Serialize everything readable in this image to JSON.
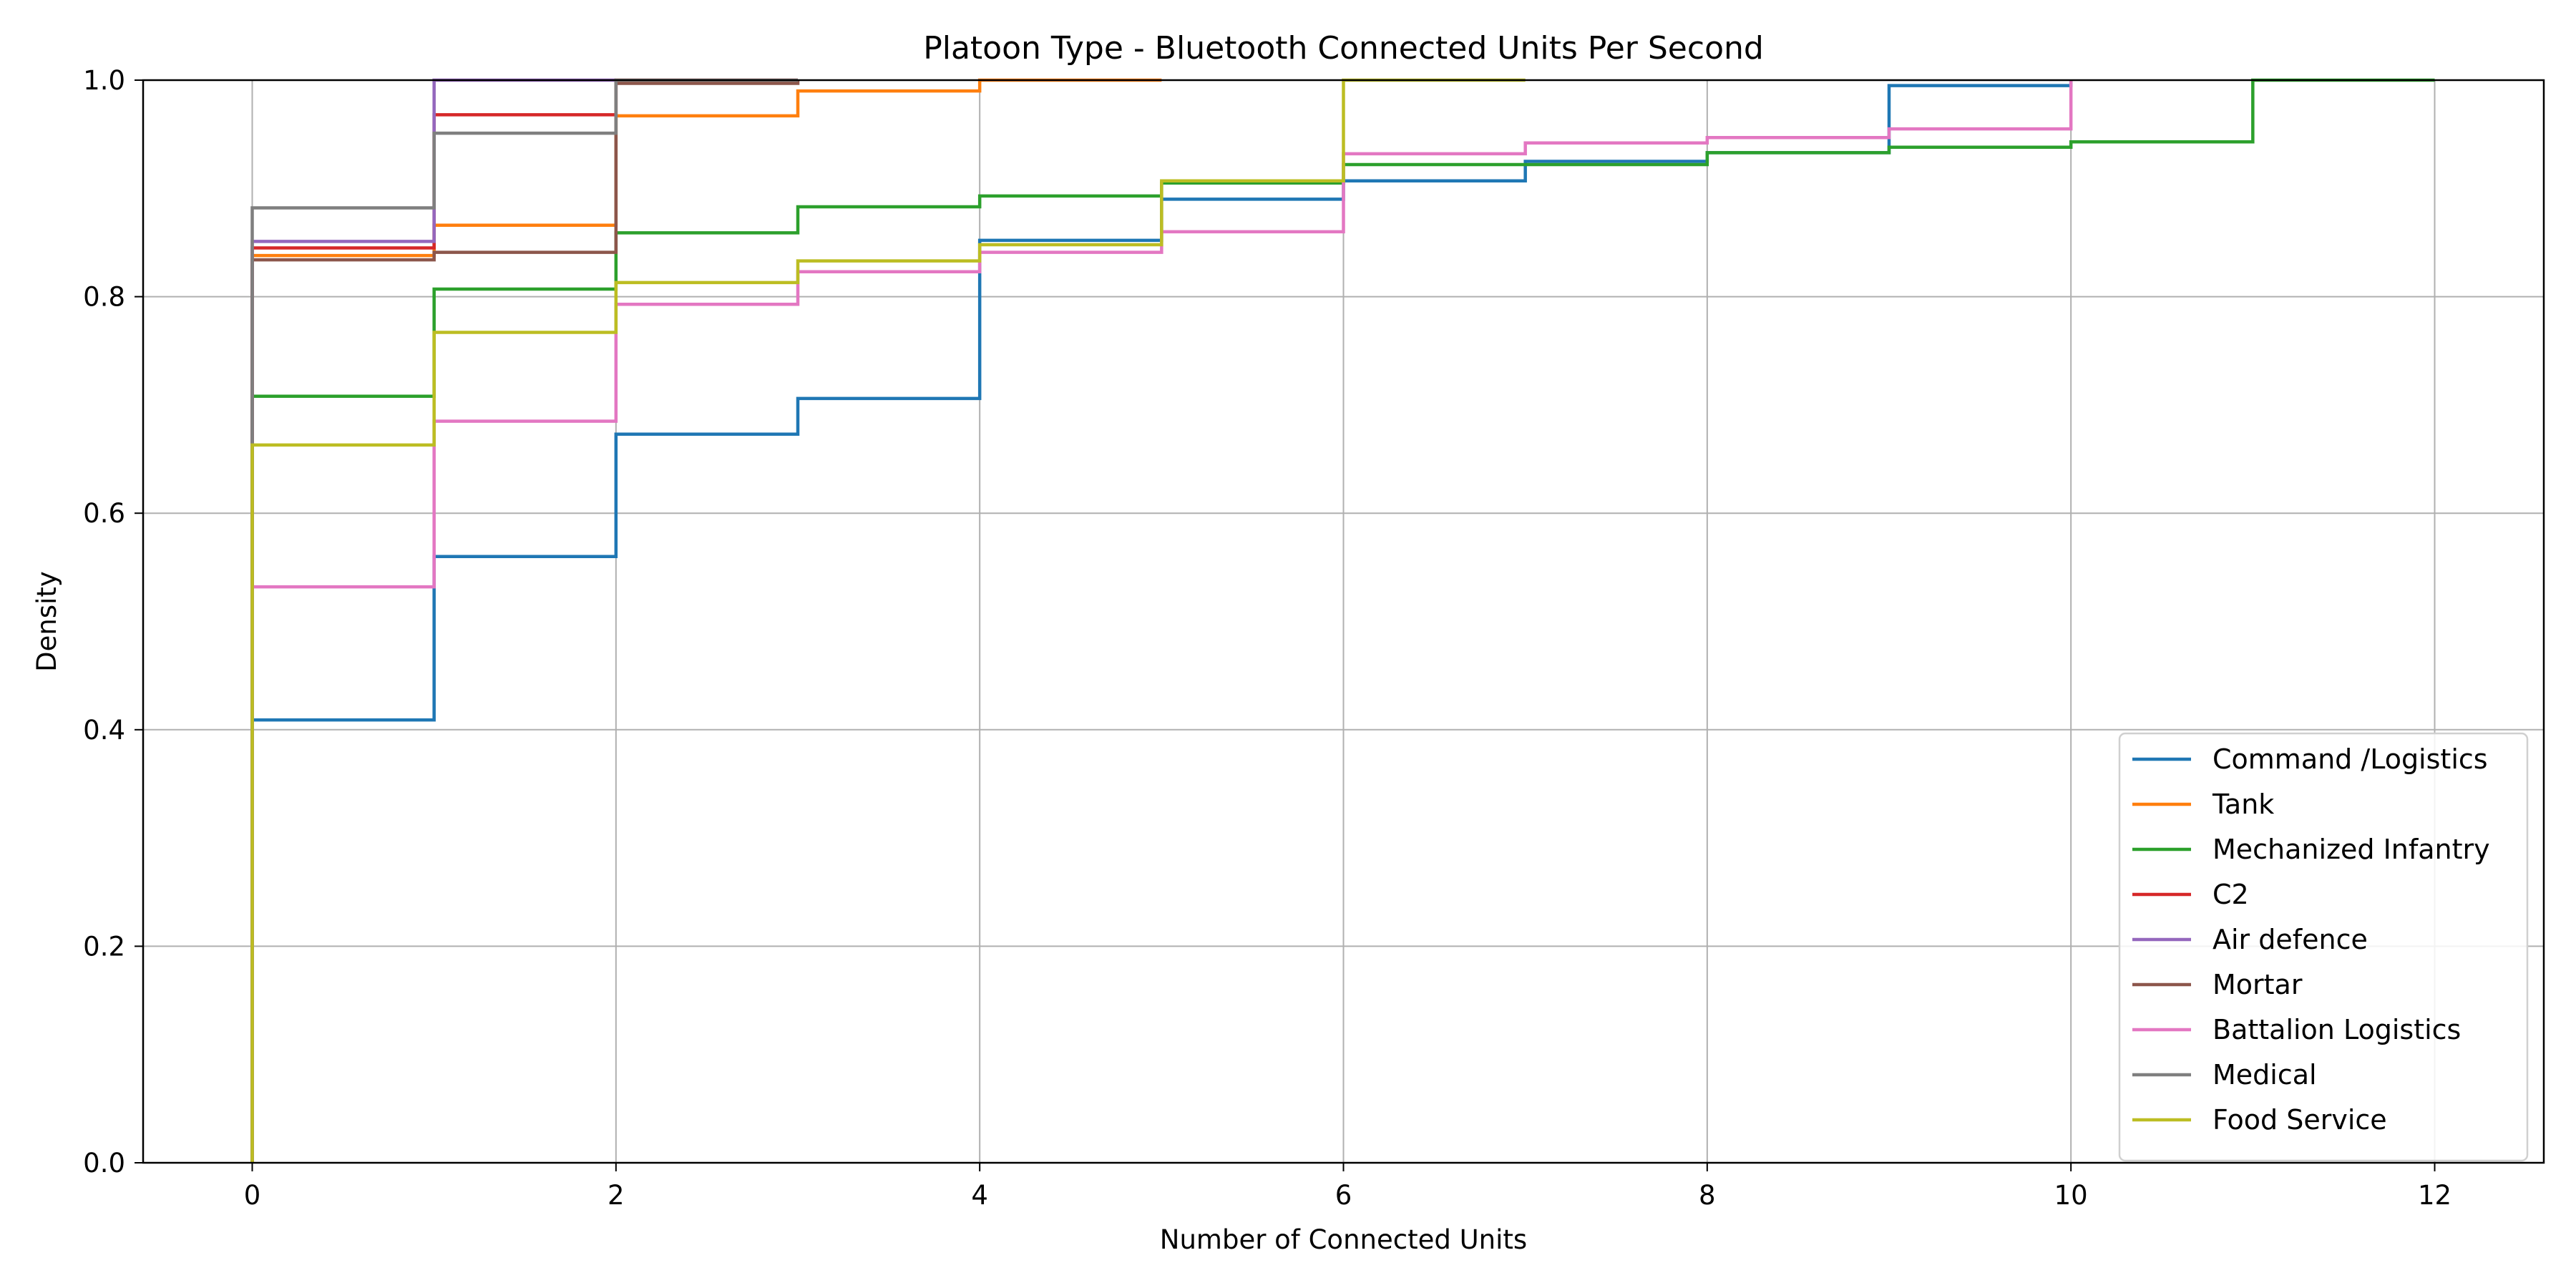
{
  "chart_data": {
    "type": "line",
    "step": true,
    "title": "Platoon Type - Bluetooth Connected Units Per Second",
    "xlabel": "Number of Connected Units",
    "ylabel": "Density",
    "xlim": [
      -0.6,
      12.6
    ],
    "ylim": [
      0,
      1.0
    ],
    "xticks": [
      0,
      2,
      4,
      6,
      8,
      10,
      12
    ],
    "yticks": [
      0.0,
      0.2,
      0.4,
      0.6,
      0.8,
      1.0
    ],
    "xtick_labels": [
      "0",
      "2",
      "4",
      "6",
      "8",
      "10",
      "12"
    ],
    "ytick_labels": [
      "0.0",
      "0.2",
      "0.4",
      "0.6",
      "0.8",
      "1.0"
    ],
    "grid": true,
    "legend_position": "bottom-right",
    "series": [
      {
        "name": "Command /Logistics",
        "color": "#1f77b4",
        "x": [
          0,
          1,
          2,
          3,
          4,
          5,
          6,
          7,
          8,
          9,
          10
        ],
        "y": [
          0.409,
          0.56,
          0.673,
          0.706,
          0.852,
          0.89,
          0.907,
          0.925,
          0.933,
          0.995,
          1.0
        ]
      },
      {
        "name": "Tank",
        "color": "#ff7f0e",
        "x": [
          0,
          1,
          2,
          3,
          4,
          5
        ],
        "y": [
          0.838,
          0.866,
          0.967,
          0.99,
          1.0,
          1.0
        ]
      },
      {
        "name": "Mechanized Infantry",
        "color": "#2ca02c",
        "x": [
          0,
          1,
          2,
          3,
          4,
          5,
          6,
          7,
          8,
          9,
          10,
          11,
          12
        ],
        "y": [
          0.708,
          0.807,
          0.859,
          0.883,
          0.893,
          0.905,
          0.922,
          0.922,
          0.933,
          0.938,
          0.943,
          1.0,
          1.0
        ]
      },
      {
        "name": "C2",
        "color": "#d62728",
        "x": [
          0,
          1,
          2,
          3
        ],
        "y": [
          0.845,
          0.968,
          1.0,
          1.0
        ]
      },
      {
        "name": "Air defence",
        "color": "#9467bd",
        "x": [
          0,
          1,
          2
        ],
        "y": [
          0.851,
          1.0,
          1.0
        ]
      },
      {
        "name": "Mortar",
        "color": "#8c564b",
        "x": [
          0,
          1,
          2,
          3
        ],
        "y": [
          0.834,
          0.841,
          0.997,
          1.0
        ]
      },
      {
        "name": "Battalion Logistics",
        "color": "#e377c2",
        "x": [
          0,
          1,
          2,
          3,
          4,
          5,
          6,
          7,
          8,
          9,
          10
        ],
        "y": [
          0.532,
          0.685,
          0.793,
          0.823,
          0.841,
          0.86,
          0.932,
          0.942,
          0.947,
          0.955,
          1.0
        ]
      },
      {
        "name": "Medical",
        "color": "#7f7f7f",
        "x": [
          0,
          1,
          2,
          3
        ],
        "y": [
          0.882,
          0.951,
          1.0,
          1.0
        ]
      },
      {
        "name": "Food Service",
        "color": "#bcbd22",
        "x": [
          0,
          1,
          2,
          3,
          4,
          5,
          6,
          7
        ],
        "y": [
          0.663,
          0.767,
          0.813,
          0.833,
          0.848,
          0.907,
          1.0,
          1.0
        ]
      }
    ]
  }
}
